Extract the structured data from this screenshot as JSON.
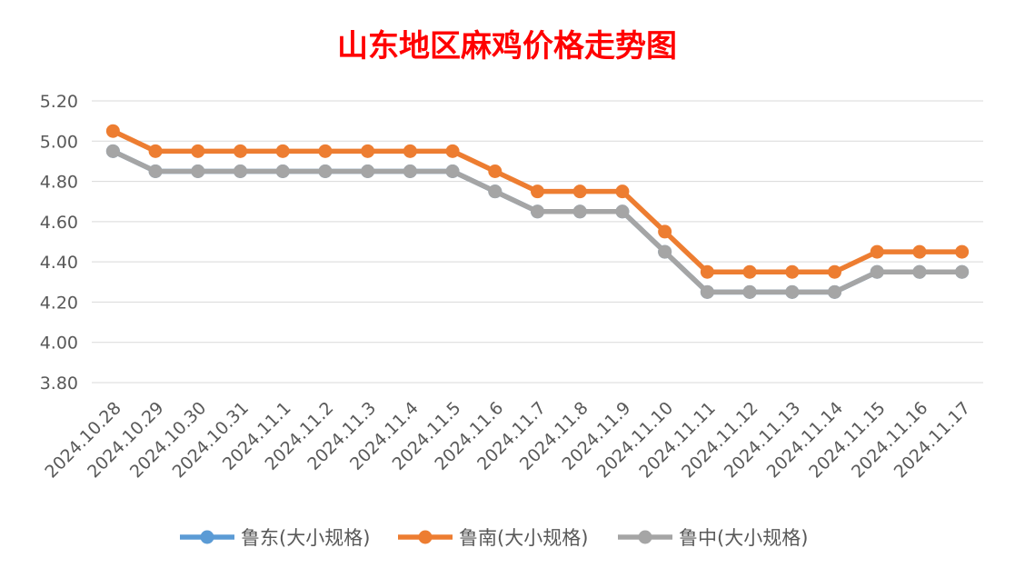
{
  "chart_data": {
    "type": "line",
    "title": "山东地区麻鸡价格走势图",
    "xlabel": "",
    "ylabel": "",
    "categories": [
      "2024.10.28",
      "2024.10.29",
      "2024.10.30",
      "2024.10.31",
      "2024.11.1",
      "2024.11.2",
      "2024.11.3",
      "2024.11.4",
      "2024.11.5",
      "2024.11.6",
      "2024.11.7",
      "2024.11.8",
      "2024.11.9",
      "2024.11.10",
      "2024.11.11",
      "2024.11.12",
      "2024.11.13",
      "2024.11.14",
      "2024.11.15",
      "2024.11.16",
      "2024.11.17"
    ],
    "ylim": [
      3.8,
      5.2
    ],
    "y_ticks": [
      3.8,
      4.0,
      4.2,
      4.4,
      4.6,
      4.8,
      5.0,
      5.2
    ],
    "y_tick_labels": [
      "3.80",
      "4.00",
      "4.20",
      "4.40",
      "4.60",
      "4.80",
      "5.00",
      "5.20"
    ],
    "grid": true,
    "legend_position": "bottom",
    "series": [
      {
        "name": "鲁东(大小规格)",
        "color": "#5b9bd5",
        "values": [
          4.95,
          4.85,
          4.85,
          4.85,
          4.85,
          4.85,
          4.85,
          4.85,
          4.85,
          4.75,
          4.65,
          4.65,
          4.65,
          4.45,
          4.25,
          4.25,
          4.25,
          4.25,
          4.35,
          4.35,
          4.35
        ]
      },
      {
        "name": "鲁南(大小规格)",
        "color": "#ed7d31",
        "values": [
          5.05,
          4.95,
          4.95,
          4.95,
          4.95,
          4.95,
          4.95,
          4.95,
          4.95,
          4.85,
          4.75,
          4.75,
          4.75,
          4.55,
          4.35,
          4.35,
          4.35,
          4.35,
          4.45,
          4.45,
          4.45
        ]
      },
      {
        "name": "鲁中(大小规格)",
        "color": "#a5a5a5",
        "values": [
          4.95,
          4.85,
          4.85,
          4.85,
          4.85,
          4.85,
          4.85,
          4.85,
          4.85,
          4.75,
          4.65,
          4.65,
          4.65,
          4.45,
          4.25,
          4.25,
          4.25,
          4.25,
          4.35,
          4.35,
          4.35
        ]
      }
    ]
  },
  "colors": {
    "title": "#ff0000",
    "grid": "#d9d9d9",
    "tick_text": "#595959"
  }
}
